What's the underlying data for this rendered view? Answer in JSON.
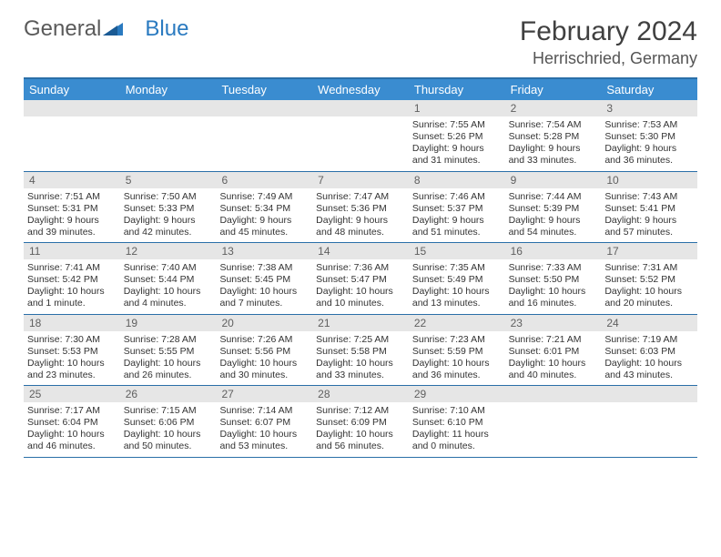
{
  "logo": {
    "text_gray": "General",
    "text_blue": "Blue"
  },
  "header": {
    "month": "February 2024",
    "location": "Herrischried, Germany"
  },
  "colors": {
    "header_bg": "#3a8cd0",
    "rule": "#2a6fa8",
    "daynum_bg": "#e6e6e6",
    "text": "#333333",
    "logo_blue": "#2a7ac0"
  },
  "day_names": [
    "Sunday",
    "Monday",
    "Tuesday",
    "Wednesday",
    "Thursday",
    "Friday",
    "Saturday"
  ],
  "weeks": [
    [
      null,
      null,
      null,
      null,
      {
        "num": "1",
        "sunrise": "Sunrise: 7:55 AM",
        "sunset": "Sunset: 5:26 PM",
        "day1": "Daylight: 9 hours",
        "day2": "and 31 minutes."
      },
      {
        "num": "2",
        "sunrise": "Sunrise: 7:54 AM",
        "sunset": "Sunset: 5:28 PM",
        "day1": "Daylight: 9 hours",
        "day2": "and 33 minutes."
      },
      {
        "num": "3",
        "sunrise": "Sunrise: 7:53 AM",
        "sunset": "Sunset: 5:30 PM",
        "day1": "Daylight: 9 hours",
        "day2": "and 36 minutes."
      }
    ],
    [
      {
        "num": "4",
        "sunrise": "Sunrise: 7:51 AM",
        "sunset": "Sunset: 5:31 PM",
        "day1": "Daylight: 9 hours",
        "day2": "and 39 minutes."
      },
      {
        "num": "5",
        "sunrise": "Sunrise: 7:50 AM",
        "sunset": "Sunset: 5:33 PM",
        "day1": "Daylight: 9 hours",
        "day2": "and 42 minutes."
      },
      {
        "num": "6",
        "sunrise": "Sunrise: 7:49 AM",
        "sunset": "Sunset: 5:34 PM",
        "day1": "Daylight: 9 hours",
        "day2": "and 45 minutes."
      },
      {
        "num": "7",
        "sunrise": "Sunrise: 7:47 AM",
        "sunset": "Sunset: 5:36 PM",
        "day1": "Daylight: 9 hours",
        "day2": "and 48 minutes."
      },
      {
        "num": "8",
        "sunrise": "Sunrise: 7:46 AM",
        "sunset": "Sunset: 5:37 PM",
        "day1": "Daylight: 9 hours",
        "day2": "and 51 minutes."
      },
      {
        "num": "9",
        "sunrise": "Sunrise: 7:44 AM",
        "sunset": "Sunset: 5:39 PM",
        "day1": "Daylight: 9 hours",
        "day2": "and 54 minutes."
      },
      {
        "num": "10",
        "sunrise": "Sunrise: 7:43 AM",
        "sunset": "Sunset: 5:41 PM",
        "day1": "Daylight: 9 hours",
        "day2": "and 57 minutes."
      }
    ],
    [
      {
        "num": "11",
        "sunrise": "Sunrise: 7:41 AM",
        "sunset": "Sunset: 5:42 PM",
        "day1": "Daylight: 10 hours",
        "day2": "and 1 minute."
      },
      {
        "num": "12",
        "sunrise": "Sunrise: 7:40 AM",
        "sunset": "Sunset: 5:44 PM",
        "day1": "Daylight: 10 hours",
        "day2": "and 4 minutes."
      },
      {
        "num": "13",
        "sunrise": "Sunrise: 7:38 AM",
        "sunset": "Sunset: 5:45 PM",
        "day1": "Daylight: 10 hours",
        "day2": "and 7 minutes."
      },
      {
        "num": "14",
        "sunrise": "Sunrise: 7:36 AM",
        "sunset": "Sunset: 5:47 PM",
        "day1": "Daylight: 10 hours",
        "day2": "and 10 minutes."
      },
      {
        "num": "15",
        "sunrise": "Sunrise: 7:35 AM",
        "sunset": "Sunset: 5:49 PM",
        "day1": "Daylight: 10 hours",
        "day2": "and 13 minutes."
      },
      {
        "num": "16",
        "sunrise": "Sunrise: 7:33 AM",
        "sunset": "Sunset: 5:50 PM",
        "day1": "Daylight: 10 hours",
        "day2": "and 16 minutes."
      },
      {
        "num": "17",
        "sunrise": "Sunrise: 7:31 AM",
        "sunset": "Sunset: 5:52 PM",
        "day1": "Daylight: 10 hours",
        "day2": "and 20 minutes."
      }
    ],
    [
      {
        "num": "18",
        "sunrise": "Sunrise: 7:30 AM",
        "sunset": "Sunset: 5:53 PM",
        "day1": "Daylight: 10 hours",
        "day2": "and 23 minutes."
      },
      {
        "num": "19",
        "sunrise": "Sunrise: 7:28 AM",
        "sunset": "Sunset: 5:55 PM",
        "day1": "Daylight: 10 hours",
        "day2": "and 26 minutes."
      },
      {
        "num": "20",
        "sunrise": "Sunrise: 7:26 AM",
        "sunset": "Sunset: 5:56 PM",
        "day1": "Daylight: 10 hours",
        "day2": "and 30 minutes."
      },
      {
        "num": "21",
        "sunrise": "Sunrise: 7:25 AM",
        "sunset": "Sunset: 5:58 PM",
        "day1": "Daylight: 10 hours",
        "day2": "and 33 minutes."
      },
      {
        "num": "22",
        "sunrise": "Sunrise: 7:23 AM",
        "sunset": "Sunset: 5:59 PM",
        "day1": "Daylight: 10 hours",
        "day2": "and 36 minutes."
      },
      {
        "num": "23",
        "sunrise": "Sunrise: 7:21 AM",
        "sunset": "Sunset: 6:01 PM",
        "day1": "Daylight: 10 hours",
        "day2": "and 40 minutes."
      },
      {
        "num": "24",
        "sunrise": "Sunrise: 7:19 AM",
        "sunset": "Sunset: 6:03 PM",
        "day1": "Daylight: 10 hours",
        "day2": "and 43 minutes."
      }
    ],
    [
      {
        "num": "25",
        "sunrise": "Sunrise: 7:17 AM",
        "sunset": "Sunset: 6:04 PM",
        "day1": "Daylight: 10 hours",
        "day2": "and 46 minutes."
      },
      {
        "num": "26",
        "sunrise": "Sunrise: 7:15 AM",
        "sunset": "Sunset: 6:06 PM",
        "day1": "Daylight: 10 hours",
        "day2": "and 50 minutes."
      },
      {
        "num": "27",
        "sunrise": "Sunrise: 7:14 AM",
        "sunset": "Sunset: 6:07 PM",
        "day1": "Daylight: 10 hours",
        "day2": "and 53 minutes."
      },
      {
        "num": "28",
        "sunrise": "Sunrise: 7:12 AM",
        "sunset": "Sunset: 6:09 PM",
        "day1": "Daylight: 10 hours",
        "day2": "and 56 minutes."
      },
      {
        "num": "29",
        "sunrise": "Sunrise: 7:10 AM",
        "sunset": "Sunset: 6:10 PM",
        "day1": "Daylight: 11 hours",
        "day2": "and 0 minutes."
      },
      null,
      null
    ]
  ]
}
